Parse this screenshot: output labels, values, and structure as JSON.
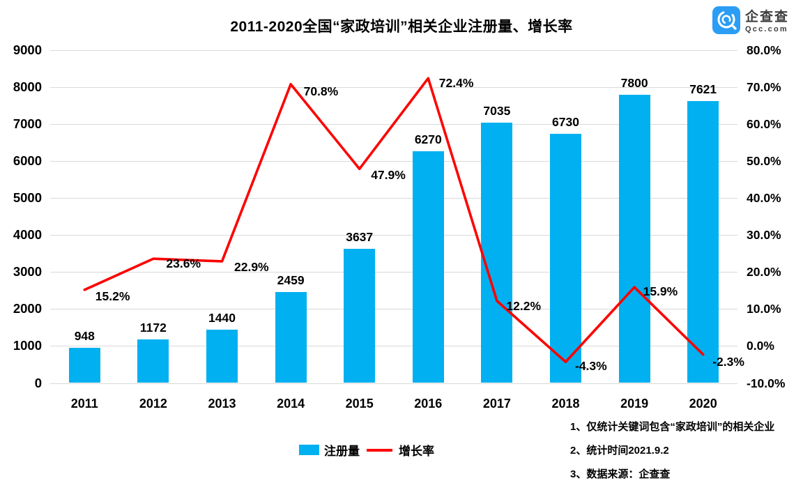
{
  "logo": {
    "name": "企查查",
    "domain": "Qcc.com",
    "icon": "qcc-logo-icon",
    "brand_color": "#2b9df4"
  },
  "notes": {
    "line1": "1、仅统计关键词包含“家政培训”的相关企业",
    "line2": "2、统计时间2021.9.2",
    "line3": "3、数据来源：企查查"
  },
  "chart_data": {
    "type": "bar",
    "subtype": "combo-bar-line",
    "title": "2011-2020全国“家政培训”相关企业注册量、增长率",
    "categories": [
      "2011",
      "2012",
      "2013",
      "2014",
      "2015",
      "2016",
      "2017",
      "2018",
      "2019",
      "2020"
    ],
    "series": [
      {
        "name": "注册量",
        "type": "bar",
        "color": "#00b0f0",
        "axis": "left",
        "values": [
          948,
          1172,
          1440,
          2459,
          3637,
          6270,
          7035,
          6730,
          7800,
          7621
        ],
        "value_labels": [
          "948",
          "1172",
          "1440",
          "2459",
          "3637",
          "6270",
          "7035",
          "6730",
          "7800",
          "7621"
        ]
      },
      {
        "name": "增长率",
        "type": "line",
        "color": "#fe0000",
        "axis": "right",
        "values": [
          15.2,
          23.6,
          22.9,
          70.8,
          47.9,
          72.4,
          12.2,
          -4.3,
          15.9,
          -2.3
        ],
        "value_labels": [
          "15.2%",
          "23.6%",
          "22.9%",
          "70.8%",
          "47.9%",
          "72.4%",
          "12.2%",
          "-4.3%",
          "15.9%",
          "-2.3%"
        ],
        "label_offsets": [
          [
            9,
            -1
          ],
          [
            12,
            -3
          ],
          [
            11,
            -2
          ],
          [
            12,
            0
          ],
          [
            10,
            -1
          ],
          [
            9,
            -3
          ],
          [
            7,
            -3
          ],
          [
            7,
            -4
          ],
          [
            6,
            -4
          ],
          [
            7,
            0
          ]
        ]
      }
    ],
    "left_axis": {
      "min": 0,
      "max": 9000,
      "step": 1000,
      "ticks": [
        "9000",
        "8000",
        "7000",
        "6000",
        "5000",
        "4000",
        "3000",
        "2000",
        "1000",
        "0"
      ]
    },
    "right_axis": {
      "min": -10,
      "max": 80,
      "step": 10,
      "ticks": [
        "80.0%",
        "70.0%",
        "60.0%",
        "50.0%",
        "40.0%",
        "30.0%",
        "20.0%",
        "10.0%",
        "0.0%",
        "-10.0%"
      ]
    },
    "grid": true,
    "gridline_color": "#d9d9d9",
    "legend_position": "bottom-center",
    "legend": [
      {
        "label": "注册量",
        "marker": "bar",
        "color": "#00b0f0"
      },
      {
        "label": "增长率",
        "marker": "line",
        "color": "#fe0000"
      }
    ]
  }
}
